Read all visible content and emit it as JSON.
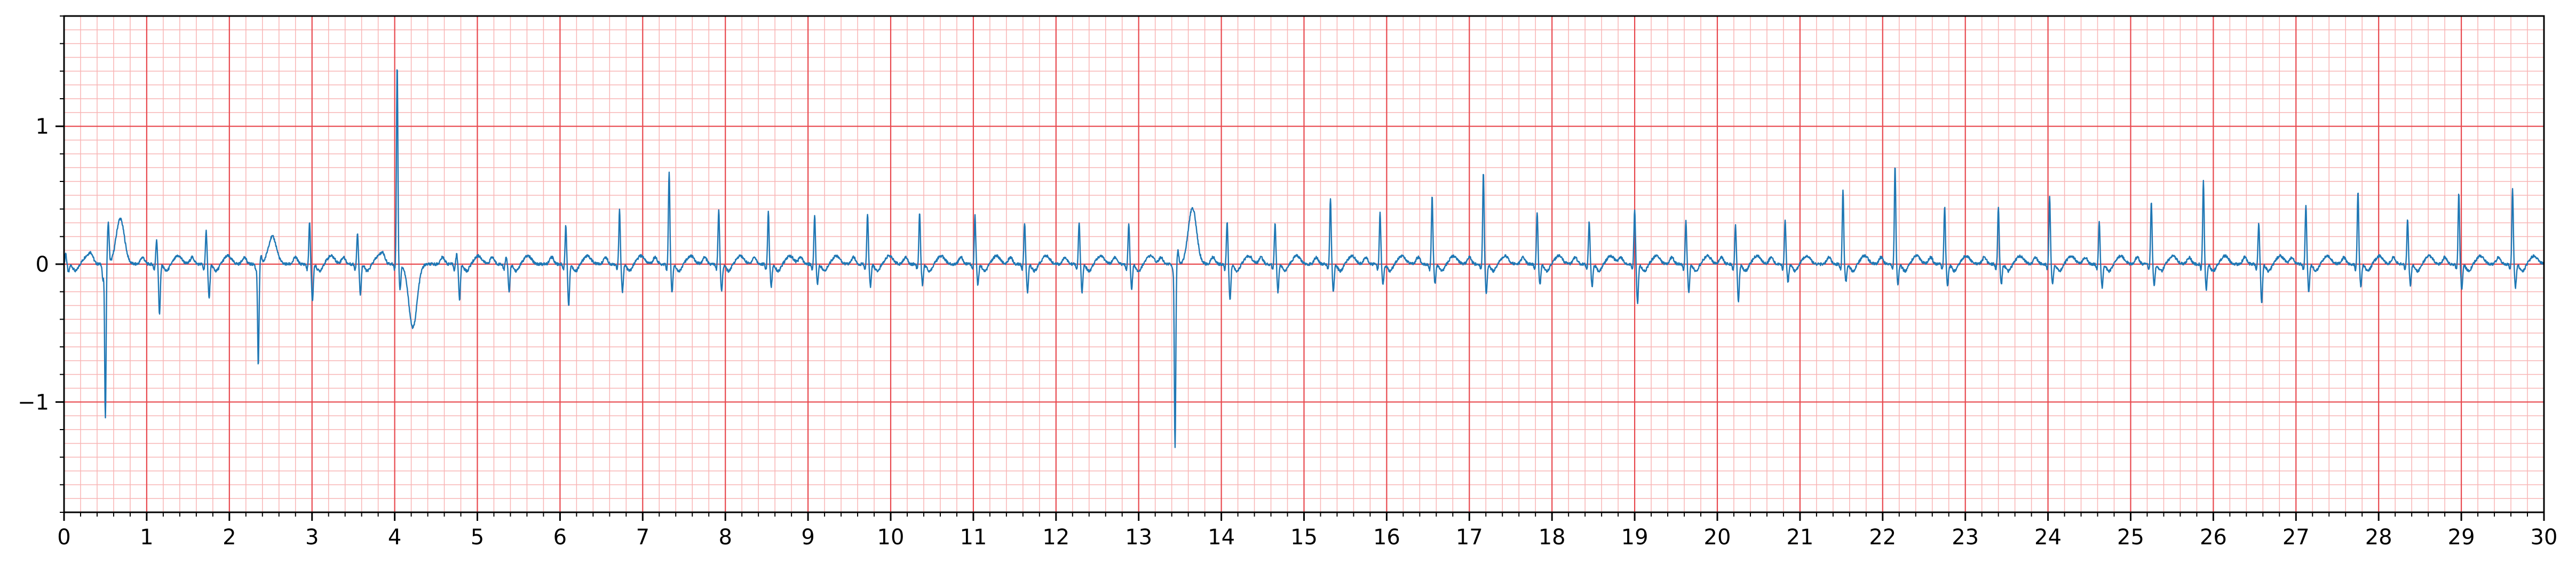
{
  "chart_data": {
    "type": "line",
    "title": "",
    "xlabel": "",
    "ylabel": "",
    "xlim": [
      0,
      30
    ],
    "ylim": [
      -1.8,
      1.8
    ],
    "x_ticks": [
      0,
      1,
      2,
      3,
      4,
      5,
      6,
      7,
      8,
      9,
      10,
      11,
      12,
      13,
      14,
      15,
      16,
      17,
      18,
      19,
      20,
      21,
      22,
      23,
      24,
      25,
      26,
      27,
      28,
      29,
      30
    ],
    "x_tick_labels": [
      "0",
      "1",
      "2",
      "3",
      "4",
      "5",
      "6",
      "7",
      "8",
      "9",
      "10",
      "11",
      "12",
      "13",
      "14",
      "15",
      "16",
      "17",
      "18",
      "19",
      "20",
      "21",
      "22",
      "23",
      "24",
      "25",
      "26",
      "27",
      "28",
      "29",
      "30"
    ],
    "y_ticks": [
      -1,
      0,
      1
    ],
    "y_tick_labels": [
      "−1",
      "0",
      "1"
    ],
    "grid": {
      "major": true,
      "minor": true,
      "major_x_step": 1,
      "major_y_step": 1,
      "minor_x_step": 0.2,
      "minor_y_step": 0.1,
      "major_color": "#e8484e",
      "minor_color": "#f8b4b4"
    },
    "legend": "none",
    "series": [
      {
        "color": "#1f77b4",
        "beats": [
          {
            "t": 0.02,
            "r": 0.08,
            "s": -0.06
          },
          {
            "t": 0.5,
            "r": -1.12,
            "s": 0.3,
            "q": -0.12,
            "t_wave": 0.33,
            "t_wave_at": 0.68
          },
          {
            "t": 1.12,
            "r": 0.18,
            "s": -0.36
          },
          {
            "t": 1.72,
            "r": 0.24,
            "s": -0.25
          },
          {
            "t": 2.35,
            "r": -0.74,
            "s": 0.05,
            "t_wave": 0.2,
            "t_wave_at": 2.52
          },
          {
            "t": 2.97,
            "r": 0.3,
            "s": -0.27
          },
          {
            "t": 3.55,
            "r": 0.23,
            "s": -0.22
          },
          {
            "t": 4.03,
            "r": 1.45,
            "s": -0.18,
            "t_wave": -0.46,
            "t_wave_at": 4.22
          },
          {
            "t": 4.75,
            "r": 0.07,
            "s": -0.26
          },
          {
            "t": 5.35,
            "r": 0.05,
            "s": -0.2
          },
          {
            "t": 6.07,
            "r": 0.28,
            "s": -0.3
          },
          {
            "t": 6.72,
            "r": 0.39,
            "s": -0.2
          },
          {
            "t": 7.32,
            "r": 0.67,
            "s": -0.2
          },
          {
            "t": 7.92,
            "r": 0.4,
            "s": -0.2
          },
          {
            "t": 8.52,
            "r": 0.38,
            "s": -0.16
          },
          {
            "t": 9.08,
            "r": 0.36,
            "s": -0.14
          },
          {
            "t": 9.72,
            "r": 0.37,
            "s": -0.16
          },
          {
            "t": 10.35,
            "r": 0.38,
            "s": -0.15
          },
          {
            "t": 11.02,
            "r": 0.35,
            "s": -0.15
          },
          {
            "t": 11.62,
            "r": 0.3,
            "s": -0.2
          },
          {
            "t": 12.28,
            "r": 0.3,
            "s": -0.2
          },
          {
            "t": 12.88,
            "r": 0.3,
            "s": -0.18
          },
          {
            "t": 13.44,
            "r": -1.33,
            "s": 0.1,
            "t_wave": 0.41,
            "t_wave_at": 13.65
          },
          {
            "t": 14.07,
            "r": 0.3,
            "s": -0.26
          },
          {
            "t": 14.65,
            "r": 0.3,
            "s": -0.2
          },
          {
            "t": 15.32,
            "r": 0.48,
            "s": -0.2
          },
          {
            "t": 15.92,
            "r": 0.38,
            "s": -0.15
          },
          {
            "t": 16.55,
            "r": 0.49,
            "s": -0.14
          },
          {
            "t": 17.17,
            "r": 0.67,
            "s": -0.22
          },
          {
            "t": 17.82,
            "r": 0.38,
            "s": -0.15
          },
          {
            "t": 18.45,
            "r": 0.31,
            "s": -0.16
          },
          {
            "t": 19.0,
            "r": 0.4,
            "s": -0.28
          },
          {
            "t": 19.62,
            "r": 0.31,
            "s": -0.2
          },
          {
            "t": 20.22,
            "r": 0.28,
            "s": -0.28
          },
          {
            "t": 20.82,
            "r": 0.32,
            "s": -0.13
          },
          {
            "t": 21.52,
            "r": 0.54,
            "s": -0.13
          },
          {
            "t": 22.15,
            "r": 0.71,
            "s": -0.15
          },
          {
            "t": 22.75,
            "r": 0.42,
            "s": -0.16
          },
          {
            "t": 23.4,
            "r": 0.41,
            "s": -0.15
          },
          {
            "t": 24.02,
            "r": 0.49,
            "s": -0.15
          },
          {
            "t": 24.62,
            "r": 0.3,
            "s": -0.17
          },
          {
            "t": 25.25,
            "r": 0.45,
            "s": -0.16
          },
          {
            "t": 25.88,
            "r": 0.61,
            "s": -0.18
          },
          {
            "t": 26.55,
            "r": 0.3,
            "s": -0.28
          },
          {
            "t": 27.12,
            "r": 0.43,
            "s": -0.2
          },
          {
            "t": 27.75,
            "r": 0.53,
            "s": -0.16
          },
          {
            "t": 28.35,
            "r": 0.33,
            "s": -0.15
          },
          {
            "t": 28.97,
            "r": 0.52,
            "s": -0.18
          },
          {
            "t": 29.62,
            "r": 0.54,
            "s": -0.17
          }
        ]
      }
    ]
  }
}
